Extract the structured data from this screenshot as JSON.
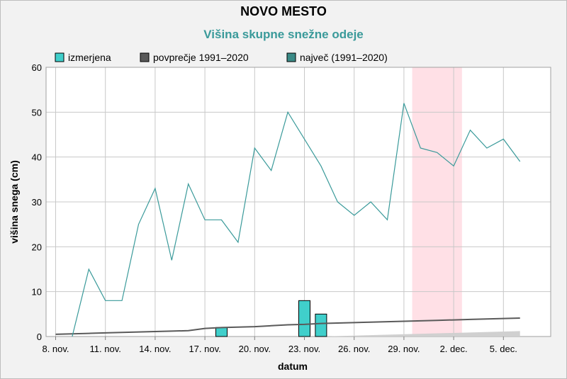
{
  "chart_data": {
    "type": "bar",
    "title": "NOVO MESTO",
    "subtitle": "Višina skupne snežne odeje",
    "xlabel": "datum",
    "ylabel": "višina snega (cm)",
    "ylim": [
      0,
      60
    ],
    "yticks": [
      0,
      10,
      20,
      30,
      40,
      50,
      60
    ],
    "grid": true,
    "legend_position": "top",
    "dates": [
      "8. nov.",
      "9. nov.",
      "10. nov.",
      "11. nov.",
      "12. nov.",
      "13. nov.",
      "14. nov.",
      "15. nov.",
      "16. nov.",
      "17. nov.",
      "18. nov.",
      "19. nov.",
      "20. nov.",
      "21. nov.",
      "22. nov.",
      "23. nov.",
      "24. nov.",
      "25. nov.",
      "26. nov.",
      "27. nov.",
      "28. nov.",
      "29. nov.",
      "30. nov.",
      "1. dec.",
      "2. dec.",
      "3. dec.",
      "4. dec.",
      "5. dec.",
      "6. dec."
    ],
    "xtick_labels": [
      "8. nov.",
      "11. nov.",
      "14. nov.",
      "17. nov.",
      "20. nov.",
      "23. nov.",
      "26. nov.",
      "29. nov.",
      "2. dec.",
      "5. dec."
    ],
    "xtick_index": [
      0,
      3,
      6,
      9,
      12,
      15,
      18,
      21,
      24,
      27
    ],
    "highlight_range": [
      "30. nov.",
      "2. dec."
    ],
    "series": [
      {
        "name": "izmerjena",
        "kind": "bar",
        "color": "#40cfcb",
        "values": [
          null,
          null,
          null,
          null,
          null,
          null,
          null,
          null,
          null,
          null,
          2,
          null,
          null,
          null,
          null,
          8,
          5,
          null,
          null,
          null,
          null,
          null,
          null,
          null,
          null,
          null,
          null,
          null,
          null
        ]
      },
      {
        "name": "povprečje 1991–2020",
        "kind": "line",
        "color": "#5a5a5a",
        "values": [
          0.5,
          0.6,
          0.7,
          0.8,
          0.9,
          1.0,
          1.1,
          1.2,
          1.3,
          1.8,
          2.0,
          2.1,
          2.2,
          2.4,
          2.6,
          2.7,
          2.9,
          3.0,
          3.1,
          3.2,
          3.3,
          3.4,
          3.5,
          3.6,
          3.7,
          3.8,
          3.9,
          4.0,
          4.1
        ]
      },
      {
        "name": "največ (1991–2020)",
        "kind": "line",
        "color": "#3a9a9a",
        "values": [
          null,
          0,
          15,
          8,
          8,
          25,
          33,
          17,
          34,
          26,
          26,
          21,
          42,
          37,
          50,
          44,
          38,
          30,
          27,
          30,
          26,
          52,
          42,
          41,
          38,
          46,
          42,
          44,
          39
        ]
      }
    ],
    "band": {
      "color": "#d0d0d0",
      "start_index": 16,
      "values_end": 1.2
    },
    "colors": {
      "highlight": "#ffe0e6",
      "plot_bg": "#ffffff",
      "grid": "#c8c8c8"
    }
  }
}
